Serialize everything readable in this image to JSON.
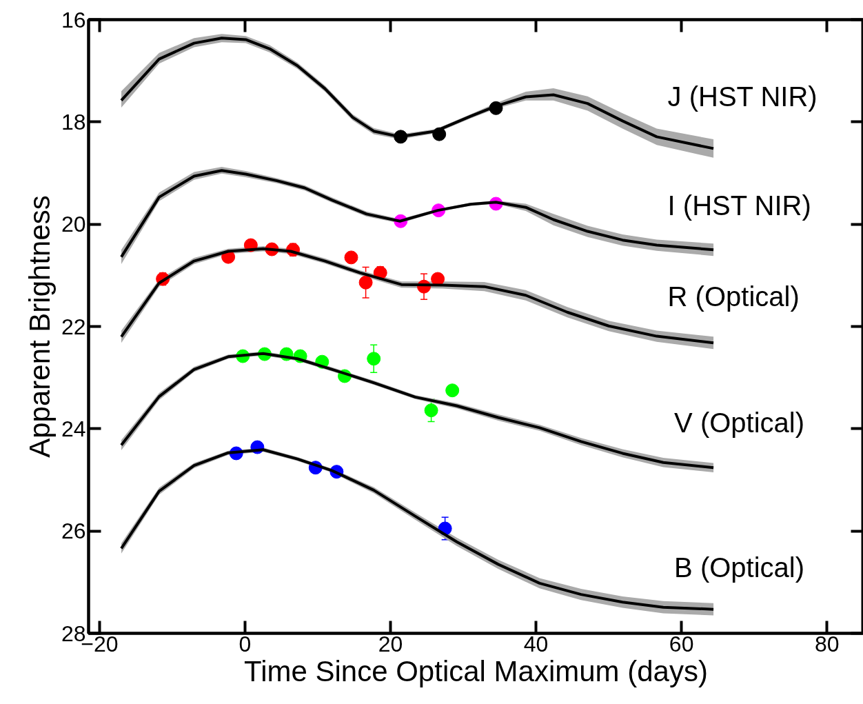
{
  "chart_data": {
    "type": "line",
    "xlabel": "Time Since Optical Maximum (days)",
    "ylabel": "Apparent Brightness",
    "xlim": [
      -21.5,
      85
    ],
    "ylim": [
      28,
      16
    ],
    "xticks": [
      {
        "value": -20,
        "label": "−20"
      },
      0,
      20,
      40,
      60,
      80
    ],
    "yticks": [
      16,
      18,
      20,
      22,
      24,
      26,
      28
    ],
    "grid": false,
    "legend": "right",
    "line_style": "solid",
    "series": [
      {
        "name": "J (HST NIR)",
        "color": "#000000",
        "x": [
          -17,
          -11.8,
          -7.0,
          -3.2,
          0.1,
          3.4,
          7.2,
          11.0,
          14.8,
          17.7,
          21.3,
          26.2,
          31.0,
          34.5,
          38.6,
          42.4,
          47.1,
          51.9,
          56.6,
          64.4
        ],
        "values": [
          17.58,
          16.77,
          16.46,
          16.36,
          16.39,
          16.57,
          16.9,
          17.35,
          17.91,
          18.18,
          18.29,
          18.18,
          17.89,
          17.69,
          17.51,
          17.47,
          17.64,
          17.98,
          18.29,
          18.52
        ],
        "lower": [
          17.4,
          16.65,
          16.36,
          16.28,
          16.32,
          16.5,
          16.84,
          17.29,
          17.85,
          18.12,
          18.24,
          18.14,
          17.85,
          17.63,
          17.41,
          17.34,
          17.5,
          17.83,
          18.13,
          18.34
        ],
        "upper": [
          17.72,
          16.86,
          16.54,
          16.44,
          16.46,
          16.64,
          16.96,
          17.41,
          17.97,
          18.24,
          18.34,
          18.22,
          17.93,
          17.74,
          17.58,
          17.58,
          17.78,
          18.13,
          18.45,
          18.7
        ]
      },
      {
        "name": "I (HST NIR)",
        "color": "#000000",
        "x": [
          -17,
          -11.8,
          -7.0,
          -3.2,
          0.1,
          4.4,
          8.2,
          12.0,
          16.7,
          21.3,
          26.5,
          31.0,
          34.5,
          38.6,
          42.4,
          47.1,
          51.9,
          56.6,
          64.4
        ],
        "values": [
          20.64,
          19.47,
          19.06,
          18.95,
          19.02,
          19.15,
          19.29,
          19.53,
          19.8,
          19.94,
          19.73,
          19.61,
          19.57,
          19.67,
          19.91,
          20.14,
          20.31,
          20.41,
          20.5
        ],
        "lower": [
          20.5,
          19.38,
          18.98,
          18.88,
          18.96,
          19.1,
          19.24,
          19.48,
          19.75,
          19.9,
          19.7,
          19.58,
          19.54,
          19.6,
          19.8,
          20.03,
          20.2,
          20.3,
          20.38
        ],
        "upper": [
          20.78,
          19.55,
          19.13,
          19.01,
          19.08,
          19.2,
          19.34,
          19.58,
          19.85,
          19.98,
          19.76,
          19.64,
          19.6,
          19.74,
          20.02,
          20.25,
          20.42,
          20.52,
          20.62
        ]
      },
      {
        "name": "R (Optical)",
        "color": "#000000",
        "x": [
          -17,
          -11.8,
          -7.0,
          -2.3,
          2.5,
          6.3,
          11.0,
          15.8,
          21.5,
          27.2,
          32.9,
          38.6,
          44.3,
          50.0,
          56.6,
          64.4
        ],
        "values": [
          22.2,
          21.15,
          20.72,
          20.53,
          20.48,
          20.53,
          20.72,
          20.95,
          21.18,
          21.19,
          21.22,
          21.39,
          21.72,
          21.99,
          22.19,
          22.32
        ],
        "lower": [
          22.08,
          21.08,
          20.66,
          20.48,
          20.43,
          20.48,
          20.67,
          20.9,
          21.12,
          21.12,
          21.13,
          21.29,
          21.62,
          21.89,
          22.08,
          22.2
        ],
        "upper": [
          22.32,
          21.22,
          20.78,
          20.58,
          20.53,
          20.58,
          20.77,
          21.0,
          21.24,
          21.26,
          21.31,
          21.49,
          21.82,
          22.09,
          22.3,
          22.44
        ]
      },
      {
        "name": "V (Optical)",
        "color": "#000000",
        "x": [
          -17,
          -11.8,
          -7.0,
          -2.3,
          2.5,
          7.2,
          12.0,
          17.7,
          23.4,
          29.1,
          34.8,
          40.5,
          46.2,
          51.9,
          57.5,
          64.4
        ],
        "values": [
          24.32,
          23.37,
          22.84,
          22.59,
          22.53,
          22.63,
          22.84,
          23.1,
          23.38,
          23.55,
          23.78,
          23.98,
          24.25,
          24.48,
          24.66,
          24.76
        ],
        "lower": [
          24.22,
          23.3,
          22.79,
          22.55,
          22.49,
          22.59,
          22.8,
          23.06,
          23.34,
          23.5,
          23.72,
          23.92,
          24.18,
          24.4,
          24.57,
          24.67
        ],
        "upper": [
          24.42,
          23.44,
          22.89,
          22.63,
          22.57,
          22.67,
          22.88,
          23.14,
          23.42,
          23.6,
          23.84,
          24.04,
          24.32,
          24.56,
          24.75,
          24.85
        ]
      },
      {
        "name": "B (Optical)",
        "color": "#000000",
        "x": [
          -17,
          -11.8,
          -7.0,
          -2.3,
          2.5,
          7.2,
          12.0,
          17.7,
          23.4,
          29.1,
          34.8,
          40.5,
          46.2,
          51.9,
          57.5,
          64.4
        ],
        "values": [
          26.34,
          25.22,
          24.72,
          24.47,
          24.41,
          24.59,
          24.82,
          25.2,
          25.71,
          26.21,
          26.65,
          27.02,
          27.24,
          27.39,
          27.49,
          27.53
        ],
        "lower": [
          26.24,
          25.15,
          24.67,
          24.43,
          24.37,
          24.55,
          24.78,
          25.14,
          25.64,
          26.13,
          26.56,
          26.92,
          27.13,
          27.28,
          27.37,
          27.41
        ],
        "upper": [
          26.44,
          25.29,
          24.77,
          24.51,
          24.45,
          24.63,
          24.86,
          25.26,
          25.78,
          26.29,
          26.74,
          27.12,
          27.35,
          27.5,
          27.61,
          27.65
        ]
      },
      {
        "type": "scatter",
        "marker": "circle",
        "color": "#000000",
        "x": [
          21.4,
          26.7,
          34.5
        ],
        "values": [
          18.29,
          18.24,
          17.73
        ]
      },
      {
        "type": "scatter",
        "marker": "circle",
        "color": "#ff00ff",
        "x": [
          21.4,
          26.6,
          34.5
        ],
        "values": [
          19.94,
          19.73,
          19.6
        ]
      },
      {
        "type": "scatter",
        "marker": "circle",
        "color": "#ff0000",
        "x": [
          -11.3,
          -2.3,
          0.8,
          3.7,
          6.6,
          14.6,
          16.6,
          18.6,
          24.6,
          26.5
        ],
        "values": [
          21.07,
          20.64,
          20.41,
          20.49,
          20.5,
          20.65,
          21.14,
          20.95,
          21.22,
          21.07
        ],
        "errors": [
          0.12,
          0.1,
          null,
          null,
          0.12,
          0.1,
          0.3,
          0.12,
          0.25,
          0.1
        ]
      },
      {
        "type": "scatter",
        "marker": "circle",
        "color": "#00ff00",
        "x": [
          -0.3,
          2.7,
          5.7,
          7.6,
          10.6,
          13.7,
          17.7,
          25.6,
          28.5
        ],
        "values": [
          22.58,
          22.54,
          22.54,
          22.58,
          22.69,
          22.97,
          22.63,
          23.64,
          23.25
        ],
        "errors": [
          null,
          null,
          null,
          null,
          null,
          null,
          0.27,
          0.22,
          null
        ]
      },
      {
        "type": "scatter",
        "marker": "circle",
        "color": "#0000ff",
        "x": [
          -1.2,
          1.7,
          9.7,
          12.6,
          27.5
        ],
        "values": [
          24.48,
          24.36,
          24.76,
          24.84,
          25.95
        ],
        "errors": [
          null,
          null,
          null,
          0.1,
          0.22
        ]
      }
    ]
  }
}
